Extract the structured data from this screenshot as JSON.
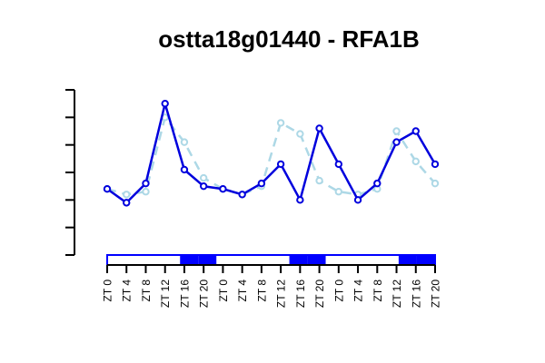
{
  "chart_data": {
    "type": "line",
    "title": "ostta18g01440 - RFA1B",
    "xlabel": "",
    "ylabel": "",
    "categories": [
      "ZT 0",
      "ZT 4",
      "ZT 8",
      "ZT 12",
      "ZT 16",
      "ZT 20",
      "ZT 0",
      "ZT 4",
      "ZT 8",
      "ZT 12",
      "ZT 16",
      "ZT 20",
      "ZT 0",
      "ZT 4",
      "ZT 8",
      "ZT 12",
      "ZT 16",
      "ZT 20"
    ],
    "ylim": [
      0,
      6
    ],
    "yticks": [
      0,
      1,
      2,
      3,
      4,
      5,
      6
    ],
    "series": [
      {
        "color": "#0000dd",
        "style": "solid",
        "values": [
          2.4,
          1.9,
          2.6,
          5.5,
          3.1,
          2.5,
          2.4,
          2.2,
          2.6,
          3.3,
          2.0,
          4.6,
          3.3,
          2.0,
          2.6,
          4.1,
          4.5,
          3.3
        ]
      },
      {
        "color": "#add8e6",
        "style": "dashed",
        "values": [
          2.4,
          2.2,
          2.3,
          5.0,
          4.1,
          2.8,
          2.4,
          2.2,
          2.5,
          4.8,
          4.4,
          2.7,
          2.3,
          2.2,
          2.4,
          4.5,
          3.4,
          2.6
        ]
      }
    ],
    "light_bar": {
      "segments": [
        "light",
        "light",
        "light",
        "light",
        "dark",
        "dark",
        "light",
        "light",
        "light",
        "light",
        "dark",
        "dark",
        "light",
        "light",
        "light",
        "light",
        "dark",
        "dark"
      ],
      "light_color": "#ffffff",
      "dark_color": "#0000ff",
      "border_color": "#0000ff"
    }
  }
}
